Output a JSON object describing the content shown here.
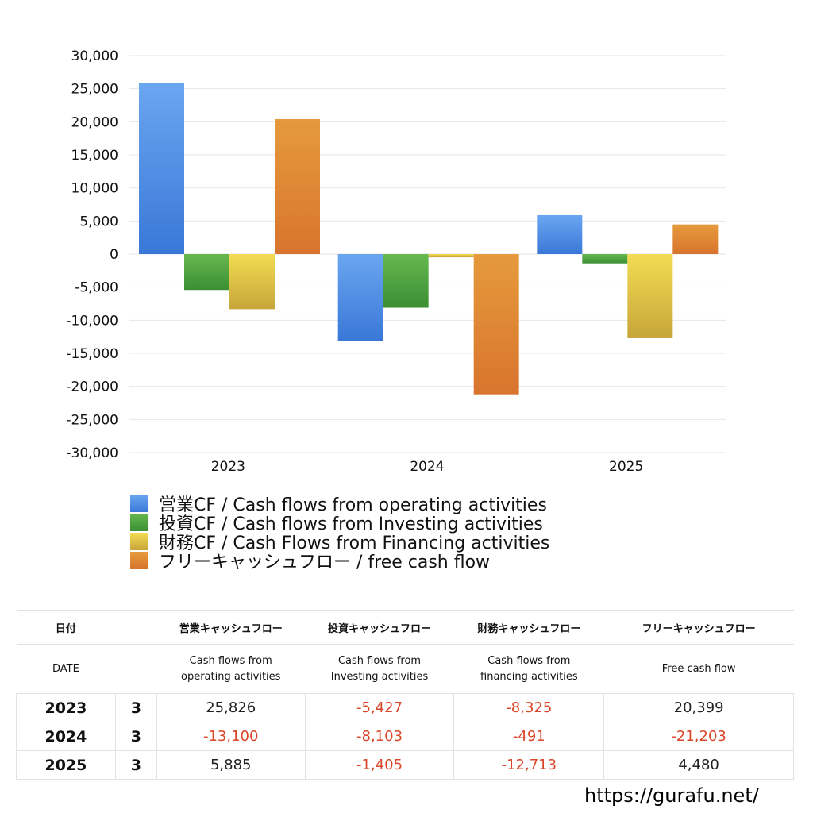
{
  "chart_data": {
    "type": "bar",
    "categories": [
      "2023",
      "2024",
      "2025"
    ],
    "ylim": [
      -30000,
      30000
    ],
    "yticks": [
      "30,000",
      "25,000",
      "20,000",
      "15,000",
      "10,000",
      "5,000",
      "0",
      "-5,000",
      "-10,000",
      "-15,000",
      "-20,000",
      "-25,000",
      "-30,000"
    ],
    "ytick_values": [
      30000,
      25000,
      20000,
      15000,
      10000,
      5000,
      0,
      -5000,
      -10000,
      -15000,
      -20000,
      -25000,
      -30000
    ],
    "grid": true,
    "legend_position": "bottom-left",
    "series": [
      {
        "name": "営業CF / Cash flows from operating activities",
        "values": [
          25826,
          -13100,
          5885
        ],
        "color": "#3a78d8",
        "light": "#6aa6f0"
      },
      {
        "name": "投資CF / Cash flows from Investing activities",
        "values": [
          -5427,
          -8103,
          -1405
        ],
        "color": "#3b8f34",
        "light": "#66b84f"
      },
      {
        "name": "財務CF / Cash Flows from Financing activities",
        "values": [
          -8325,
          -491,
          -12713
        ],
        "color": "#c7a53a",
        "light": "#f3dc52"
      },
      {
        "name": "フリーキャッシュフロー / free cash flow",
        "values": [
          20399,
          -21203,
          4480
        ],
        "color": "#d8742e",
        "light": "#e69a3c"
      }
    ]
  },
  "table": {
    "header_jp": [
      "日付",
      "",
      "営業キャッシュフロー",
      "投資キャッシュフロー",
      "財務キャッシュフロー",
      "フリーキャッシュフロー"
    ],
    "header_en": [
      "DATE",
      "",
      "Cash flows from\noperating activities",
      "Cash flows from\nInvesting activities",
      "Cash flows from\nfinancing activities",
      "Free cash flow"
    ],
    "rows": [
      {
        "year": "2023",
        "month": "3",
        "operating": "25,826",
        "investing": "-5,427",
        "financing": "-8,325",
        "free": "20,399"
      },
      {
        "year": "2024",
        "month": "3",
        "operating": "-13,100",
        "investing": "-8,103",
        "financing": "-491",
        "free": "-21,203"
      },
      {
        "year": "2025",
        "month": "3",
        "operating": "5,885",
        "investing": "-1,405",
        "financing": "-12,713",
        "free": "4,480"
      }
    ]
  },
  "colors": {
    "negative": "#d9462a",
    "positive": "#222222"
  },
  "site_url": "https://gurafu.net/"
}
